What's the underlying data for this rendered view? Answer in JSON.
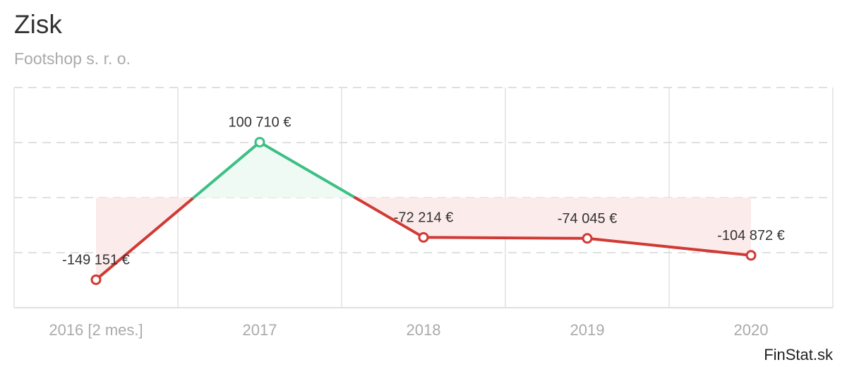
{
  "header": {
    "title": "Zisk",
    "subtitle": "Footshop s. r. o."
  },
  "footer": {
    "brand": "FinStat.sk"
  },
  "chart_data": {
    "type": "line",
    "title": "Zisk",
    "subtitle": "Footshop s. r. o.",
    "categories": [
      "2016 [2 mes.]",
      "2017",
      "2018",
      "2019",
      "2020"
    ],
    "series": [
      {
        "values": [
          -149151,
          100710,
          -72214,
          -74045,
          -104872
        ],
        "labels": [
          "-149 151 €",
          "100 710 €",
          "-72 214 €",
          "-74 045 €",
          "-104 872 €"
        ]
      }
    ],
    "ylim": [
      -200000,
      200000
    ],
    "grid": true,
    "colors": {
      "positive": "#3dbf85",
      "negative": "#d03a34",
      "positive_fill": "#eefaf3",
      "negative_fill": "#fcebeb",
      "grid": "#e0e0e0",
      "axis": "#e0e0e0"
    }
  }
}
